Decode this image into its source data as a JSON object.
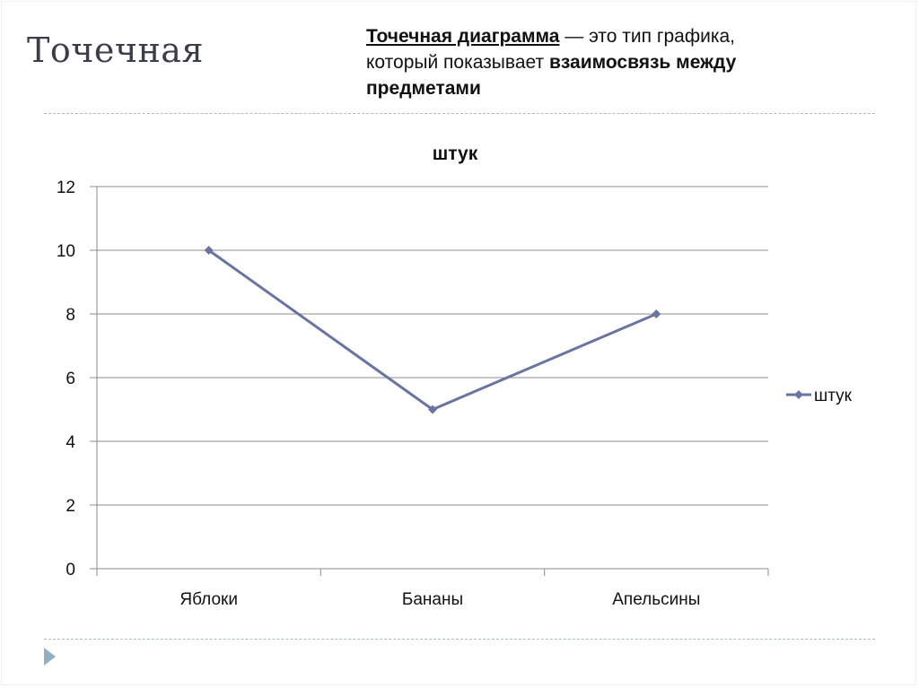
{
  "slide": {
    "title": "Точечная",
    "description": {
      "term": "Точечная диаграмма",
      "part1": " — это тип графика,",
      "part2": "который показывает ",
      "bold": "взаимосвязь между",
      "bold2": "предметами"
    }
  },
  "colors": {
    "series": "#6a74a0",
    "grid": "#8c8c8c",
    "separator": "#a9bccb",
    "bullet": "#94aec6",
    "title": "#3d3d4a"
  },
  "icons": {
    "bullet": "triangle-right-icon"
  },
  "chart_data": {
    "type": "line",
    "title": "штук",
    "categories": [
      "Яблоки",
      "Бананы",
      "Апельсины"
    ],
    "series": [
      {
        "name": "штук",
        "values": [
          10,
          5,
          8
        ],
        "marker": "diamond"
      }
    ],
    "xlabel": "",
    "ylabel": "",
    "ylim": [
      0,
      12
    ],
    "yticks": [
      "0",
      "2",
      "4",
      "6",
      "8",
      "10",
      "12"
    ],
    "grid": true,
    "legend_position": "right"
  }
}
